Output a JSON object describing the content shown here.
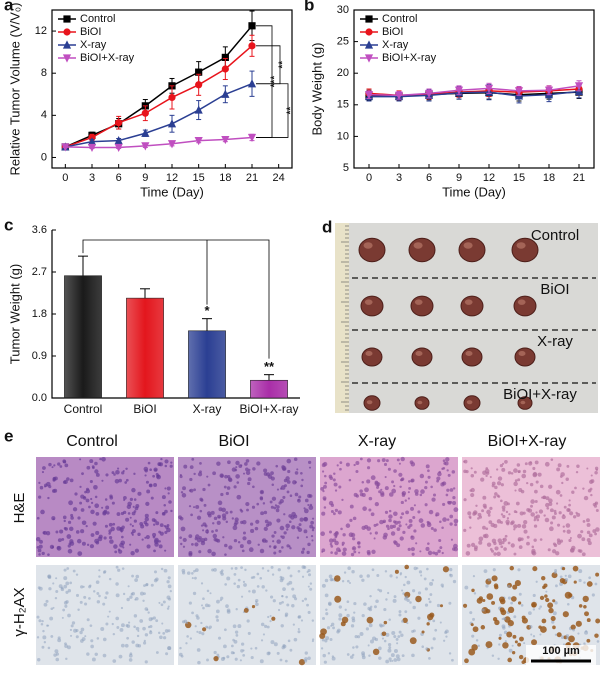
{
  "chart_data": [
    {
      "type": "line",
      "panel_label": "a",
      "xlabel": "Time (Day)",
      "ylabel": "Relative Tumor Volume (V/V₀)",
      "x": [
        0,
        3,
        6,
        9,
        12,
        15,
        18,
        21
      ],
      "xlim": [
        -1.5,
        25.5
      ],
      "xticks": [
        0,
        3,
        6,
        9,
        12,
        15,
        18,
        21,
        24
      ],
      "ylim": [
        -1,
        14
      ],
      "yticks": [
        0,
        4,
        8,
        12
      ],
      "legend": "upper left",
      "series": [
        {
          "name": "Control",
          "color": "#000000",
          "marker": "square",
          "values": [
            1,
            2.1,
            3.2,
            4.9,
            6.8,
            8.1,
            9.5,
            12.5
          ],
          "errors": [
            0.1,
            0.3,
            0.5,
            0.6,
            0.7,
            1.0,
            1.0,
            1.4
          ]
        },
        {
          "name": "BiOI",
          "color": "#e8141c",
          "marker": "circle",
          "values": [
            1,
            1.9,
            3.3,
            4.2,
            5.7,
            6.9,
            8.4,
            10.6
          ],
          "errors": [
            0.1,
            0.3,
            0.6,
            0.7,
            1.1,
            1.0,
            1.0,
            1.0
          ]
        },
        {
          "name": "X-ray",
          "color": "#2b3f93",
          "marker": "triangle-up",
          "values": [
            1,
            1.5,
            1.6,
            2.3,
            3.2,
            4.5,
            6.0,
            7.0
          ],
          "errors": [
            0.1,
            0.2,
            0.2,
            0.3,
            0.8,
            0.9,
            0.8,
            1.2
          ]
        },
        {
          "name": "BiOI+X-ray",
          "color": "#c04fc0",
          "marker": "triangle-down",
          "values": [
            1,
            0.95,
            0.95,
            1.1,
            1.3,
            1.6,
            1.7,
            1.9
          ],
          "errors": [
            0.05,
            0.1,
            0.1,
            0.15,
            0.2,
            0.2,
            0.2,
            0.3
          ]
        }
      ],
      "significance": [
        "***",
        "**",
        "**"
      ]
    },
    {
      "type": "line",
      "panel_label": "b",
      "xlabel": "Time (Day)",
      "ylabel": "Body Weight (g)",
      "x": [
        0,
        3,
        6,
        9,
        12,
        15,
        18,
        21
      ],
      "xlim": [
        -1.5,
        22.5
      ],
      "xticks": [
        0,
        3,
        6,
        9,
        12,
        15,
        18,
        21
      ],
      "ylim": [
        5,
        30
      ],
      "yticks": [
        5,
        10,
        15,
        20,
        25,
        30
      ],
      "legend": "upper left",
      "series": [
        {
          "name": "Control",
          "color": "#000000",
          "marker": "square",
          "values": [
            16.5,
            16.4,
            16.6,
            16.8,
            16.9,
            16.6,
            16.8,
            17.0
          ],
          "errors": [
            0.8,
            0.7,
            0.8,
            0.9,
            1.0,
            1.0,
            0.9,
            1.0
          ]
        },
        {
          "name": "BiOI",
          "color": "#e8141c",
          "marker": "circle",
          "values": [
            16.8,
            16.5,
            16.7,
            17.0,
            17.2,
            17.0,
            17.2,
            17.5
          ],
          "errors": [
            0.7,
            0.7,
            0.8,
            0.8,
            0.9,
            0.8,
            0.8,
            0.9
          ]
        },
        {
          "name": "X-ray",
          "color": "#2b3f93",
          "marker": "triangle-up",
          "values": [
            16.3,
            16.3,
            16.5,
            16.9,
            17.0,
            16.4,
            16.6,
            17.1
          ],
          "errors": [
            0.7,
            0.7,
            0.9,
            1.0,
            1.2,
            1.1,
            1.1,
            1.0
          ]
        },
        {
          "name": "BiOI+X-ray",
          "color": "#c04fc0",
          "marker": "triangle-down",
          "values": [
            16.6,
            16.5,
            16.8,
            17.3,
            17.6,
            17.2,
            17.3,
            18.0
          ],
          "errors": [
            0.6,
            0.6,
            0.7,
            0.7,
            0.8,
            0.7,
            0.7,
            0.8
          ]
        }
      ]
    },
    {
      "type": "bar",
      "panel_label": "c",
      "ylabel": "Tumor Weight (g)",
      "categories": [
        "Control",
        "BiOI",
        "X-ray",
        "BiOI+X-ray"
      ],
      "values": [
        2.62,
        2.14,
        1.44,
        0.38
      ],
      "errors": [
        0.42,
        0.2,
        0.26,
        0.12
      ],
      "colors": [
        "#1a1a1a",
        "#e3161d",
        "#2b3f93",
        "#a92ea8"
      ],
      "value_annotations": [
        null,
        null,
        "*",
        "**"
      ],
      "ylim": [
        0,
        3.6
      ],
      "yticks": [
        {
          "value": 0,
          "label": "0.0"
        },
        0.9,
        1.8,
        2.7,
        3.6
      ]
    }
  ],
  "photo_panel": {
    "panel_label": "d",
    "labels": [
      "Control",
      "BiOI",
      "X-ray",
      "BiOI+X-ray"
    ]
  },
  "histology_panel": {
    "panel_label": "e",
    "columns": [
      "Control",
      "BiOI",
      "X-ray",
      "BiOI+X-ray"
    ],
    "rows": [
      "H&E",
      "γ-H₂AX"
    ],
    "scale_bar": "100 µm"
  }
}
